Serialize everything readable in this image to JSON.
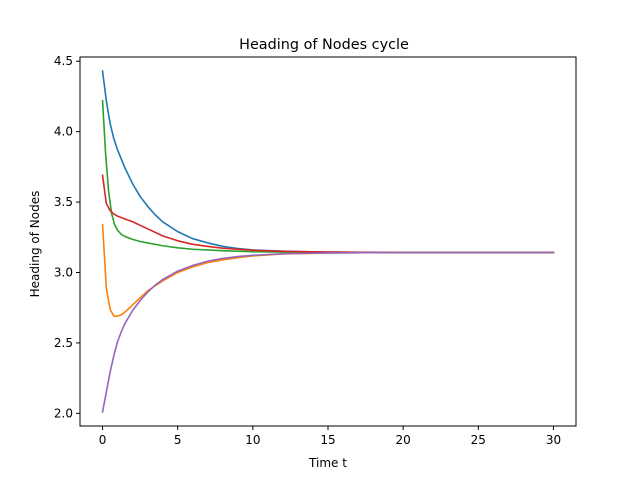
{
  "chart_data": {
    "type": "line",
    "title": "Heading of Nodes cycle",
    "xlabel": "Time t",
    "ylabel": "Heading of Nodes",
    "xlim": [
      -1.5,
      31.5
    ],
    "ylim": [
      1.91,
      4.53
    ],
    "xticks": [
      0,
      5,
      10,
      15,
      20,
      25,
      30
    ],
    "xtick_labels": [
      "0",
      "5",
      "10",
      "15",
      "20",
      "25",
      "30"
    ],
    "yticks": [
      2.0,
      2.5,
      3.0,
      3.5,
      4.0,
      4.5
    ],
    "ytick_labels": [
      "2.0",
      "2.5",
      "3.0",
      "3.5",
      "4.0",
      "4.5"
    ],
    "grid": false,
    "series": [
      {
        "color": "#1f77b4",
        "x": [
          0,
          0.25,
          0.5,
          0.75,
          1,
          1.5,
          2,
          2.5,
          3,
          3.5,
          4,
          5,
          6,
          7,
          8,
          9,
          10,
          12,
          14,
          17,
          20,
          25,
          30
        ],
        "y": [
          4.43,
          4.22,
          4.06,
          3.95,
          3.87,
          3.74,
          3.63,
          3.54,
          3.47,
          3.41,
          3.36,
          3.29,
          3.24,
          3.21,
          3.185,
          3.17,
          3.16,
          3.151,
          3.146,
          3.143,
          3.142,
          3.142,
          3.142
        ]
      },
      {
        "color": "#ff7f0e",
        "x": [
          0,
          0.25,
          0.5,
          0.75,
          1,
          1.25,
          1.5,
          2,
          2.5,
          3,
          4,
          5,
          6,
          7,
          8,
          9,
          10,
          12,
          15,
          20,
          25,
          30
        ],
        "y": [
          3.34,
          2.89,
          2.74,
          2.69,
          2.69,
          2.7,
          2.72,
          2.77,
          2.82,
          2.87,
          2.94,
          3.0,
          3.04,
          3.07,
          3.09,
          3.105,
          3.118,
          3.132,
          3.139,
          3.142,
          3.142,
          3.142
        ]
      },
      {
        "color": "#2ca02c",
        "x": [
          0,
          0.2,
          0.4,
          0.6,
          0.8,
          1,
          1.25,
          1.5,
          2,
          2.5,
          3,
          4,
          5,
          6,
          8,
          10,
          12,
          15,
          20,
          25,
          30
        ],
        "y": [
          4.22,
          3.85,
          3.58,
          3.42,
          3.34,
          3.3,
          3.27,
          3.255,
          3.235,
          3.22,
          3.21,
          3.19,
          3.175,
          3.165,
          3.155,
          3.148,
          3.145,
          3.143,
          3.142,
          3.142,
          3.142
        ]
      },
      {
        "color": "#d62728",
        "x": [
          0,
          0.25,
          0.5,
          0.75,
          1,
          1.5,
          2,
          2.5,
          3,
          4,
          5,
          6,
          7,
          8,
          10,
          12,
          15,
          20,
          25,
          30
        ],
        "y": [
          3.69,
          3.49,
          3.44,
          3.415,
          3.4,
          3.38,
          3.36,
          3.335,
          3.31,
          3.26,
          3.225,
          3.2,
          3.185,
          3.172,
          3.158,
          3.15,
          3.145,
          3.142,
          3.142,
          3.142
        ]
      },
      {
        "color": "#9467bd",
        "x": [
          0,
          0.25,
          0.5,
          0.75,
          1,
          1.25,
          1.5,
          2,
          2.5,
          3,
          3.5,
          4,
          5,
          6,
          7,
          8,
          9,
          10,
          12,
          15,
          20,
          25,
          30
        ],
        "y": [
          2.01,
          2.15,
          2.29,
          2.41,
          2.51,
          2.58,
          2.64,
          2.73,
          2.8,
          2.86,
          2.91,
          2.95,
          3.01,
          3.05,
          3.08,
          3.1,
          3.113,
          3.122,
          3.133,
          3.139,
          3.142,
          3.142,
          3.142
        ]
      }
    ]
  }
}
